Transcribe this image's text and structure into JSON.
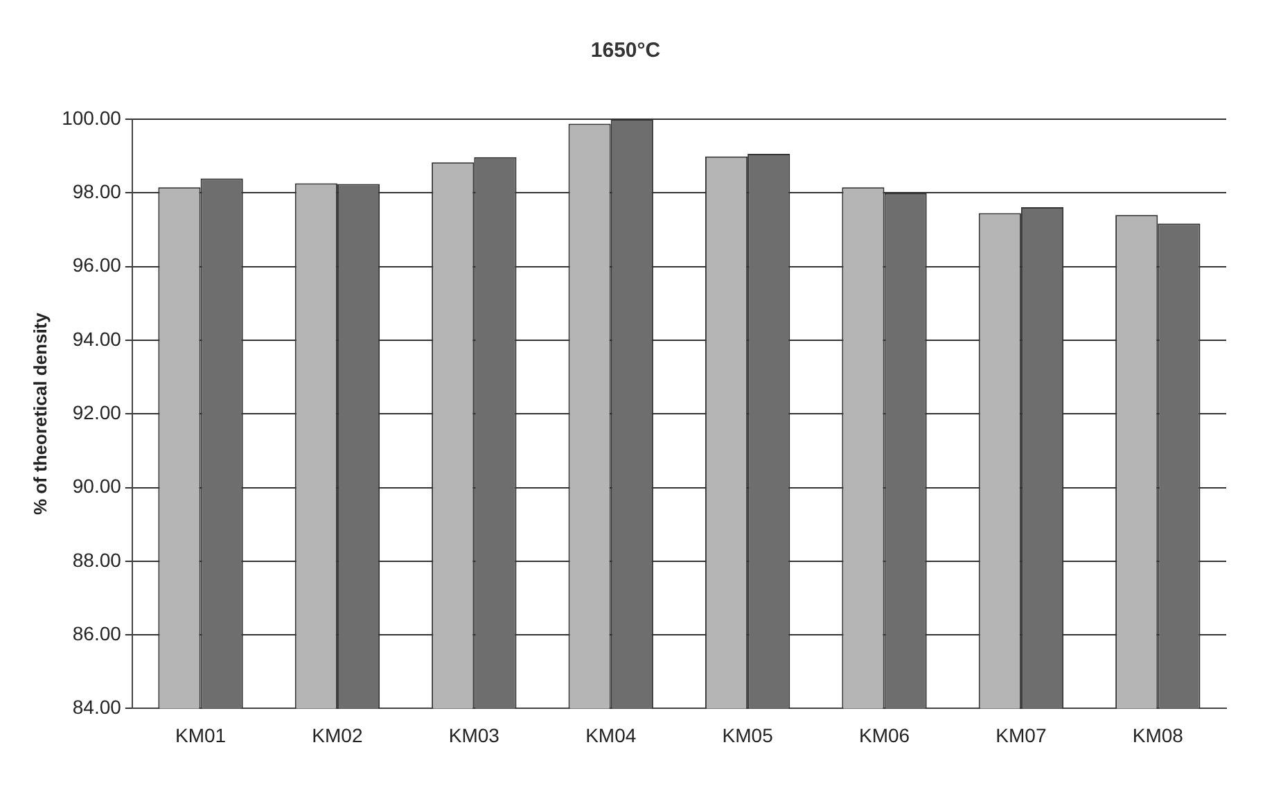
{
  "chart_data": {
    "type": "bar",
    "title": "1650°C",
    "ylabel": "% of theoretical density",
    "categories": [
      "KM01",
      "KM02",
      "KM03",
      "KM04",
      "KM05",
      "KM06",
      "KM07",
      "KM08"
    ],
    "series": [
      {
        "color": "#b5b5b5",
        "values": [
          98.15,
          98.26,
          98.83,
          99.88,
          98.99,
          98.15,
          97.45,
          97.4
        ]
      },
      {
        "color": "#6e6e6e",
        "values": [
          98.39,
          98.24,
          98.97,
          100.0,
          99.06,
          97.99,
          97.61,
          97.17
        ]
      }
    ],
    "ylim": [
      84,
      100
    ],
    "yticks": [
      {
        "value": 84,
        "label": "84.00"
      },
      {
        "value": 86,
        "label": "86.00"
      },
      {
        "value": 88,
        "label": "88.00"
      },
      {
        "value": 90,
        "label": "90.00"
      },
      {
        "value": 92,
        "label": "92.00"
      },
      {
        "value": 94,
        "label": "94.00"
      },
      {
        "value": 96,
        "label": "96.00"
      },
      {
        "value": 98,
        "label": "98.00"
      },
      {
        "value": 100,
        "label": "100.00"
      }
    ],
    "grid": "y",
    "legend": false
  }
}
